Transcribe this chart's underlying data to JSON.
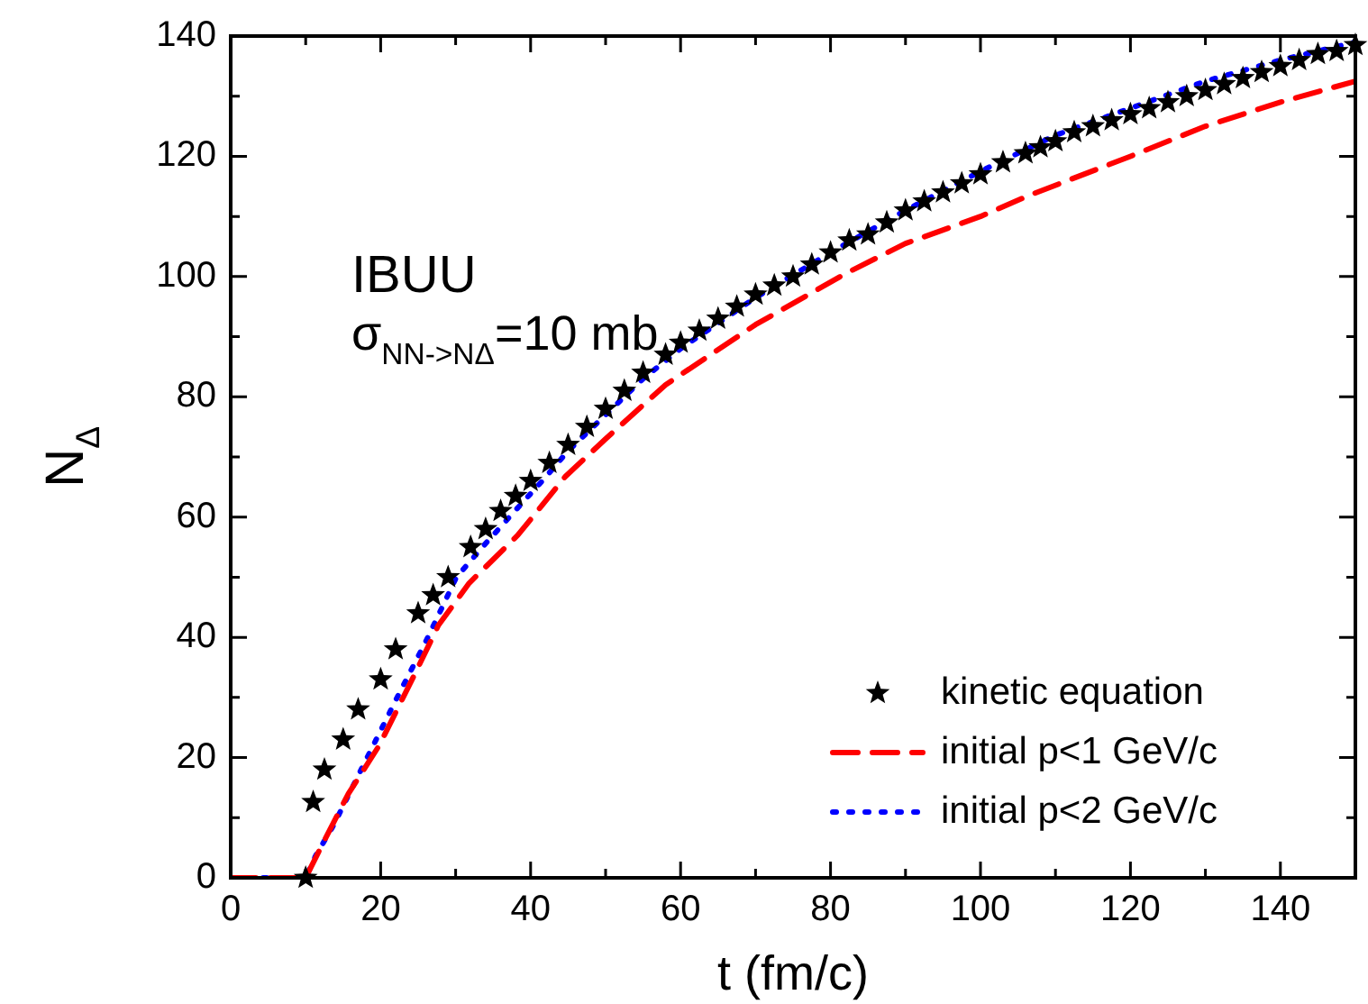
{
  "chart_data": {
    "type": "line",
    "xlabel": "t (fm/c)",
    "ylabel": "N$_{Δ}$",
    "annotations": [
      "IBUU",
      "σ$_{NN->NΔ}$=10 mb"
    ],
    "xlim": [
      0,
      150
    ],
    "xticks": [
      0,
      {
        "value": 10,
        "label": null
      },
      20,
      {
        "value": 30,
        "label": null
      },
      40,
      {
        "value": 50,
        "label": null
      },
      60,
      {
        "value": 70,
        "label": null
      },
      80,
      {
        "value": 90,
        "label": null
      },
      100,
      {
        "value": 110,
        "label": null
      },
      120,
      {
        "value": 130,
        "label": null
      },
      140,
      {
        "value": 150,
        "label": null
      }
    ],
    "ylim": [
      0,
      140
    ],
    "yticks": [
      0,
      {
        "value": 10,
        "label": null
      },
      20,
      {
        "value": 30,
        "label": null
      },
      40,
      {
        "value": 50,
        "label": null
      },
      60,
      {
        "value": 70,
        "label": null
      },
      80,
      {
        "value": 90,
        "label": null
      },
      100,
      {
        "value": 110,
        "label": null
      },
      120,
      {
        "value": 130,
        "label": null
      },
      140
    ],
    "grid": false,
    "legend": "bottom right",
    "series": [
      {
        "name": "kinetic equation",
        "type": "scatter",
        "marker": "star",
        "color": "#000000",
        "x": [
          10,
          11,
          12.5,
          15,
          17,
          20,
          22,
          25,
          27,
          29,
          32,
          34,
          36,
          38,
          40,
          42.5,
          45,
          47.5,
          50,
          52.5,
          55,
          58,
          60,
          62.5,
          65,
          67.5,
          70,
          72.5,
          75,
          77.5,
          80,
          82.5,
          85,
          87.5,
          90,
          92.5,
          95,
          97.5,
          100,
          103,
          106,
          108,
          110,
          112.5,
          115,
          117.5,
          120,
          122.5,
          125,
          127.5,
          130,
          132.5,
          135,
          137.5,
          140,
          142.5,
          145,
          147.5,
          150
        ],
        "values": [
          0,
          12.6,
          18,
          23,
          28,
          33,
          38,
          44,
          47,
          50,
          55,
          58,
          61,
          63.5,
          66,
          69,
          72,
          75,
          78,
          81,
          84,
          87,
          89,
          91,
          93,
          95,
          97,
          98.5,
          100,
          102,
          104,
          106,
          107,
          109,
          111,
          112.5,
          114,
          115.5,
          117,
          119,
          120.5,
          121.5,
          122.5,
          124,
          125,
          126,
          127,
          128,
          129,
          130,
          131,
          132,
          133,
          134,
          135,
          136,
          137,
          137.5,
          138.5
        ]
      },
      {
        "name": "initial p<1 GeV/c",
        "line_style": "dashed",
        "color": "#ff0000",
        "x": [
          0,
          10,
          12,
          15.7,
          19.8,
          24.6,
          27.7,
          31.8,
          38.3,
          44.6,
          50,
          58,
          70,
          82,
          90,
          100,
          106.5,
          120,
          130,
          140,
          150
        ],
        "values": [
          0,
          0,
          5,
          14,
          22,
          34,
          42,
          49,
          57,
          66.7,
          73,
          82,
          92,
          100.5,
          105.5,
          110,
          113.5,
          120,
          125,
          129,
          132.5
        ]
      },
      {
        "name": "initial p<2 GeV/c",
        "line_style": "dotted",
        "color": "#0000ff",
        "x": [
          0,
          10,
          11.3,
          13.7,
          17.8,
          22.2,
          26.3,
          28.2,
          30.1,
          34,
          37.6,
          41.4,
          45,
          50,
          55,
          60,
          70,
          80,
          90,
          100,
          110,
          120,
          130,
          140,
          150
        ],
        "values": [
          0,
          0,
          3.6,
          8.7,
          19,
          30,
          40,
          45,
          50,
          55.6,
          60.6,
          65.8,
          71,
          77,
          83,
          88,
          96.5,
          104,
          111,
          117.5,
          123.5,
          128,
          132.5,
          136,
          139
        ]
      }
    ]
  }
}
